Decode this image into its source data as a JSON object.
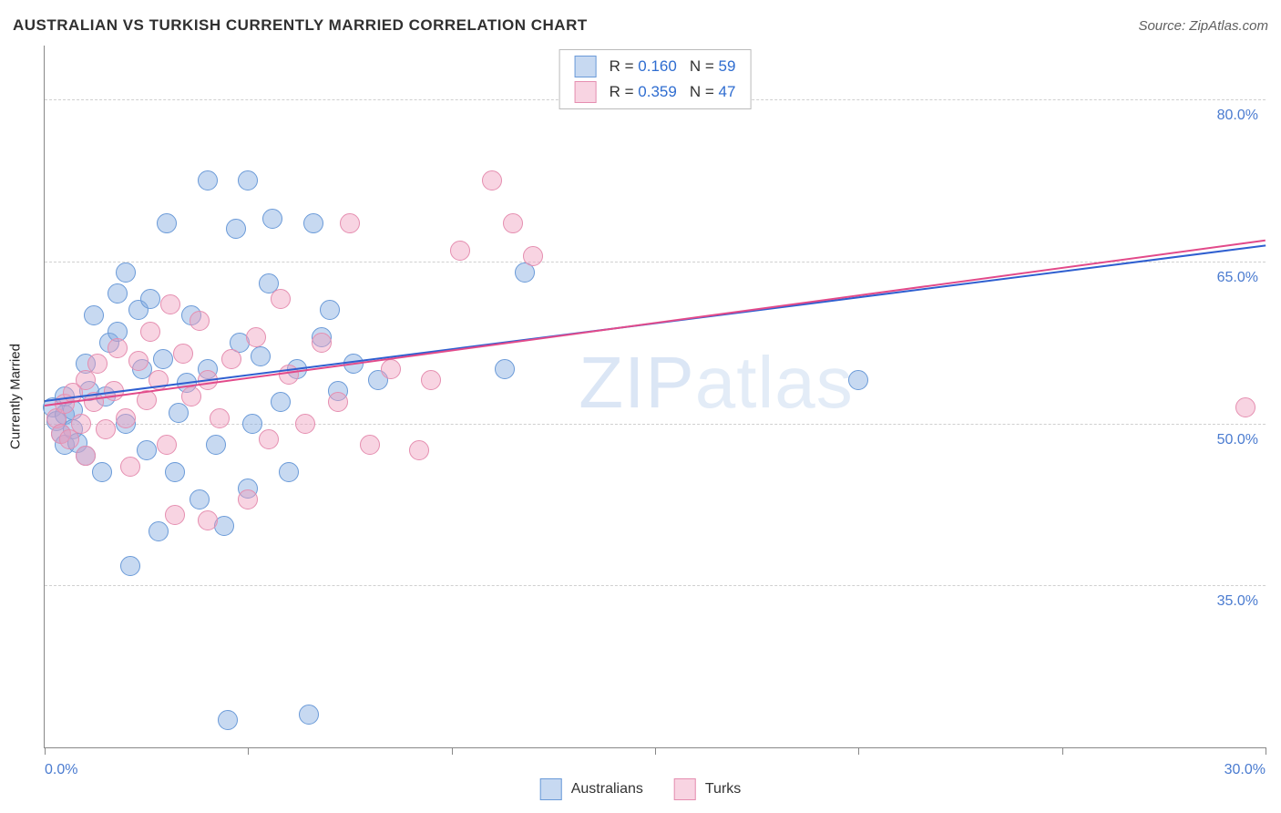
{
  "header": {
    "title": "AUSTRALIAN VS TURKISH CURRENTLY MARRIED CORRELATION CHART",
    "source": "Source: ZipAtlas.com"
  },
  "watermark": {
    "bold": "ZIP",
    "light": "atlas"
  },
  "chart": {
    "type": "scatter",
    "background_color": "#ffffff",
    "grid_color": "#d0d0d0",
    "axis_color": "#888888",
    "y_axis_title": "Currently Married",
    "xlim": [
      0,
      30
    ],
    "ylim": [
      20,
      85
    ],
    "x_ticks": [
      0,
      5,
      10,
      15,
      20,
      25,
      30
    ],
    "x_tick_labels": {
      "first": "0.0%",
      "last": "30.0%"
    },
    "y_grid": [
      35,
      50,
      65,
      80
    ],
    "y_tick_labels": [
      "35.0%",
      "50.0%",
      "65.0%",
      "80.0%"
    ],
    "tick_label_color": "#4a7bd0",
    "tick_label_fontsize": 16,
    "marker_radius": 10,
    "marker_stroke_width": 1.5,
    "series": [
      {
        "name": "Australians",
        "fill": "rgba(130,170,225,0.45)",
        "stroke": "#6a9ad8",
        "trend_color": "#2f5fd0",
        "R": "0.160",
        "N": "59",
        "trend": {
          "x1": 0,
          "y1": 52.2,
          "x2": 30,
          "y2": 66.6
        },
        "points": [
          [
            0.2,
            51.5
          ],
          [
            0.3,
            50.2
          ],
          [
            0.4,
            49.0
          ],
          [
            0.5,
            50.8
          ],
          [
            0.5,
            48.0
          ],
          [
            0.5,
            52.5
          ],
          [
            0.7,
            51.2
          ],
          [
            0.7,
            49.5
          ],
          [
            0.8,
            48.2
          ],
          [
            1.0,
            47.0
          ],
          [
            1.0,
            55.5
          ],
          [
            1.1,
            53.0
          ],
          [
            1.2,
            60.0
          ],
          [
            1.4,
            45.5
          ],
          [
            1.5,
            52.5
          ],
          [
            1.6,
            57.5
          ],
          [
            1.8,
            58.5
          ],
          [
            1.8,
            62.0
          ],
          [
            2.0,
            50.0
          ],
          [
            2.0,
            64.0
          ],
          [
            2.1,
            36.8
          ],
          [
            2.3,
            60.5
          ],
          [
            2.4,
            55.0
          ],
          [
            2.5,
            47.5
          ],
          [
            2.6,
            61.5
          ],
          [
            2.8,
            40.0
          ],
          [
            2.9,
            56.0
          ],
          [
            3.0,
            68.5
          ],
          [
            3.2,
            45.5
          ],
          [
            3.3,
            51.0
          ],
          [
            3.5,
            53.8
          ],
          [
            3.6,
            60.0
          ],
          [
            3.8,
            43.0
          ],
          [
            4.0,
            55.0
          ],
          [
            4.0,
            72.5
          ],
          [
            4.2,
            48.0
          ],
          [
            4.4,
            40.5
          ],
          [
            4.5,
            22.5
          ],
          [
            4.7,
            68.0
          ],
          [
            4.8,
            57.5
          ],
          [
            5.0,
            72.5
          ],
          [
            5.0,
            44.0
          ],
          [
            5.1,
            50.0
          ],
          [
            5.3,
            56.2
          ],
          [
            5.5,
            63.0
          ],
          [
            5.6,
            69.0
          ],
          [
            5.8,
            52.0
          ],
          [
            6.0,
            45.5
          ],
          [
            6.2,
            55.0
          ],
          [
            6.5,
            23.0
          ],
          [
            6.6,
            68.5
          ],
          [
            6.8,
            58.0
          ],
          [
            7.0,
            60.5
          ],
          [
            7.2,
            53.0
          ],
          [
            7.6,
            55.5
          ],
          [
            8.2,
            54.0
          ],
          [
            11.3,
            55.0
          ],
          [
            11.8,
            64.0
          ],
          [
            20.0,
            54.0
          ]
        ]
      },
      {
        "name": "Turks",
        "fill": "rgba(240,160,190,0.45)",
        "stroke": "#e58eb0",
        "trend_color": "#e24a8a",
        "R": "0.359",
        "N": "47",
        "trend": {
          "x1": 0,
          "y1": 51.7,
          "x2": 30,
          "y2": 67.0
        },
        "points": [
          [
            0.3,
            50.5
          ],
          [
            0.4,
            49.0
          ],
          [
            0.5,
            51.8
          ],
          [
            0.6,
            48.5
          ],
          [
            0.7,
            52.8
          ],
          [
            0.9,
            50.0
          ],
          [
            1.0,
            54.0
          ],
          [
            1.0,
            47.0
          ],
          [
            1.2,
            52.0
          ],
          [
            1.3,
            55.5
          ],
          [
            1.5,
            49.5
          ],
          [
            1.7,
            53.0
          ],
          [
            1.8,
            57.0
          ],
          [
            2.0,
            50.5
          ],
          [
            2.1,
            46.0
          ],
          [
            2.3,
            55.8
          ],
          [
            2.5,
            52.2
          ],
          [
            2.6,
            58.5
          ],
          [
            2.8,
            54.0
          ],
          [
            3.0,
            48.0
          ],
          [
            3.1,
            61.0
          ],
          [
            3.2,
            41.5
          ],
          [
            3.4,
            56.5
          ],
          [
            3.6,
            52.5
          ],
          [
            3.8,
            59.5
          ],
          [
            4.0,
            54.0
          ],
          [
            4.0,
            41.0
          ],
          [
            4.3,
            50.5
          ],
          [
            4.6,
            56.0
          ],
          [
            5.0,
            43.0
          ],
          [
            5.2,
            58.0
          ],
          [
            5.5,
            48.5
          ],
          [
            5.8,
            61.5
          ],
          [
            6.0,
            54.5
          ],
          [
            6.4,
            50.0
          ],
          [
            6.8,
            57.5
          ],
          [
            7.2,
            52.0
          ],
          [
            7.5,
            68.5
          ],
          [
            8.0,
            48.0
          ],
          [
            8.5,
            55.0
          ],
          [
            9.2,
            47.5
          ],
          [
            9.5,
            54.0
          ],
          [
            10.2,
            66.0
          ],
          [
            11.0,
            72.5
          ],
          [
            11.5,
            68.5
          ],
          [
            12.0,
            65.5
          ],
          [
            29.5,
            51.5
          ]
        ]
      }
    ]
  },
  "legend_top": {
    "swatch_size": 22,
    "rows": [
      {
        "series_index": 0,
        "R_label": "R =",
        "N_label": "N ="
      },
      {
        "series_index": 1,
        "R_label": "R =",
        "N_label": "N ="
      }
    ]
  },
  "legend_bottom": {
    "items": [
      {
        "series_index": 0
      },
      {
        "series_index": 1
      }
    ]
  }
}
